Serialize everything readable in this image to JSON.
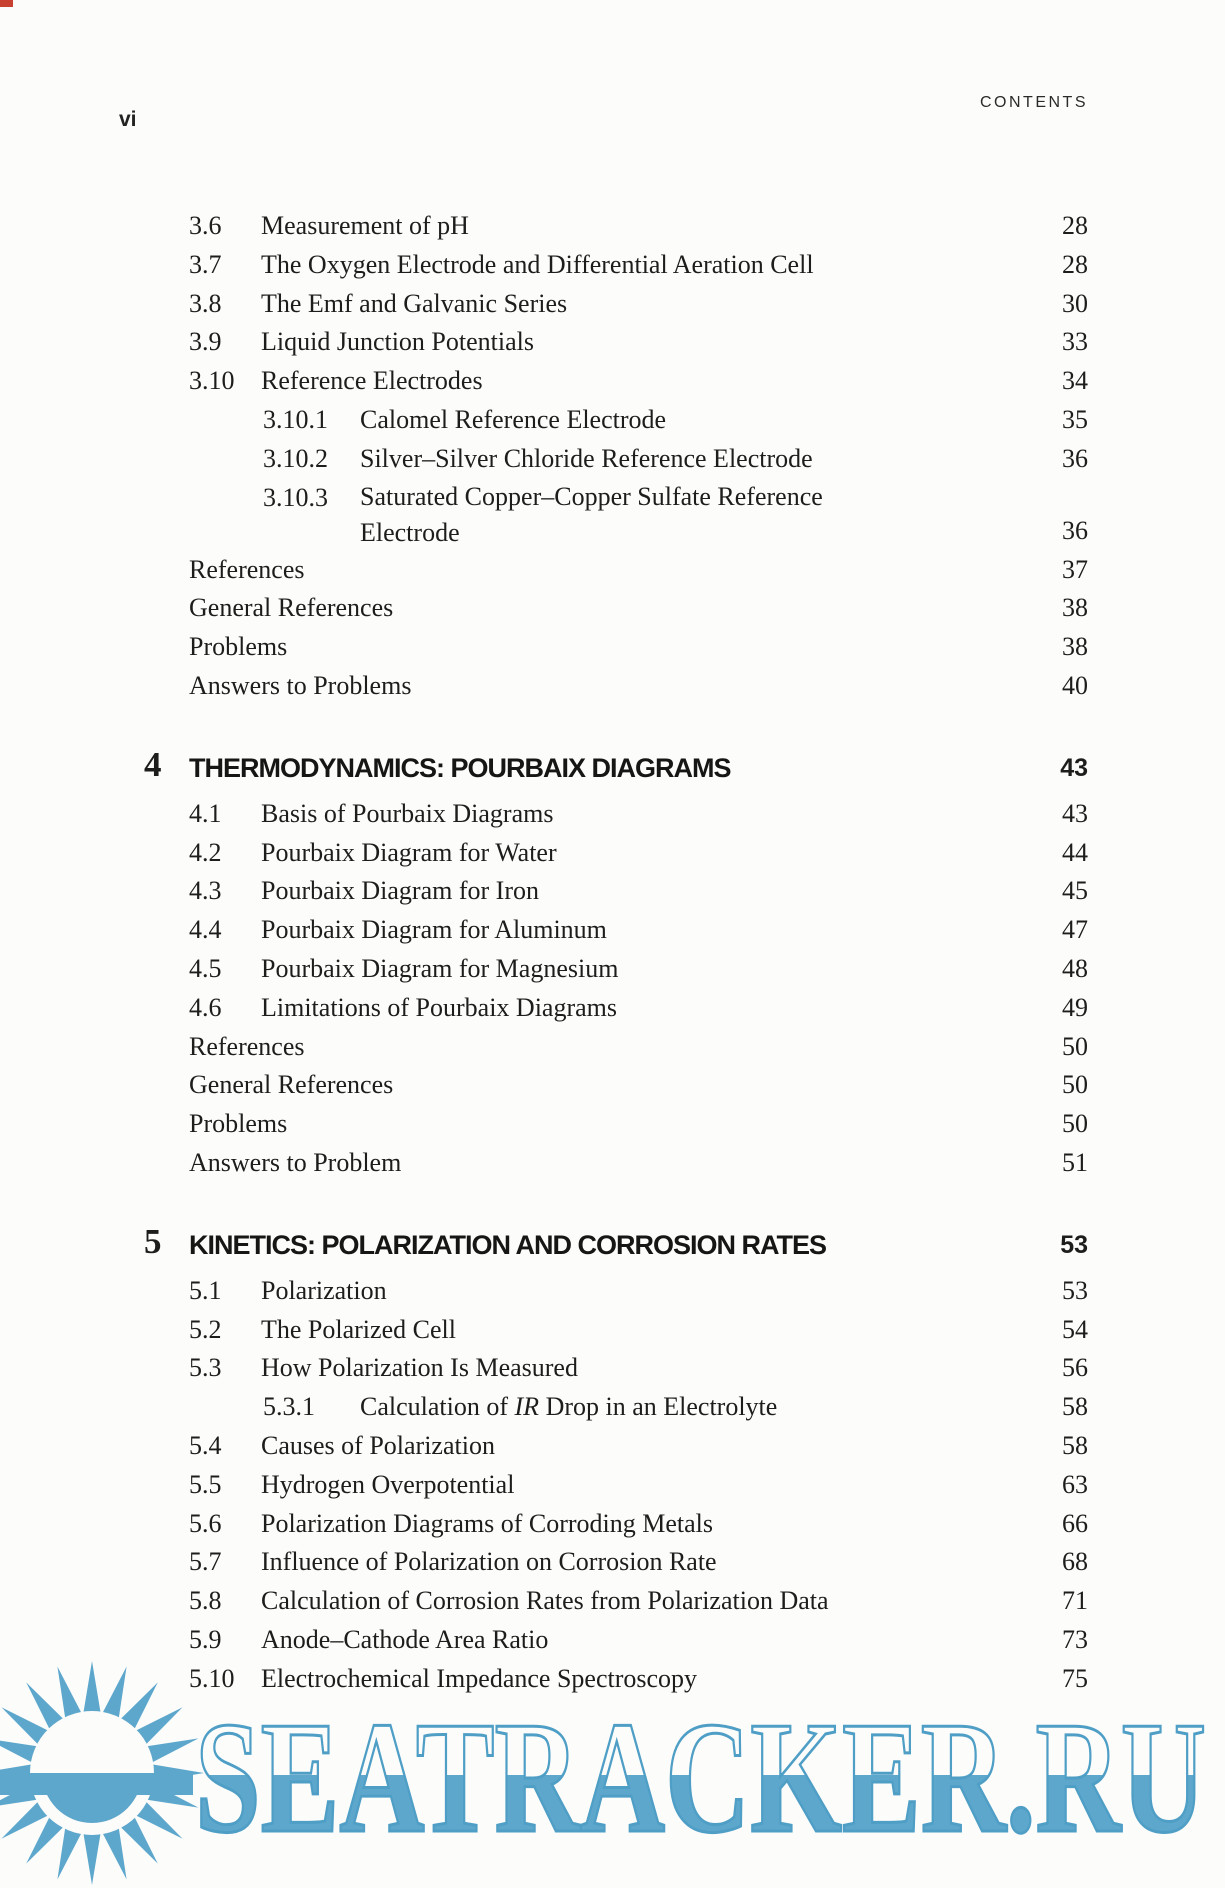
{
  "page": {
    "folio": "vi",
    "running_head": "CONTENTS"
  },
  "colors": {
    "text": "#1d1d1b",
    "watermark_fill": "#5ea7cc",
    "watermark_stroke": "#4e9ec6"
  },
  "chapters": [
    {
      "rows": [
        {
          "number": "3.6",
          "title": "Measurement of pH",
          "page": "28",
          "level": 1
        },
        {
          "number": "3.7",
          "title": "The Oxygen Electrode and Differential Aeration Cell",
          "page": "28",
          "level": 1
        },
        {
          "number": "3.8",
          "title": "The Emf and Galvanic Series",
          "page": "30",
          "level": 1
        },
        {
          "number": "3.9",
          "title": "Liquid Junction Potentials",
          "page": "33",
          "level": 1
        },
        {
          "number": "3.10",
          "title": "Reference Electrodes",
          "page": "34",
          "level": 1
        },
        {
          "number": "3.10.1",
          "title": "Calomel Reference Electrode",
          "page": "35",
          "level": 2
        },
        {
          "number": "3.10.2",
          "title": "Silver–Silver Chloride Reference Electrode",
          "page": "36",
          "level": 2
        },
        {
          "number": "3.10.3",
          "lines": [
            "Saturated Copper–Copper Sulfate Reference",
            "Electrode"
          ],
          "page": "36",
          "level": 2
        },
        {
          "label": "References",
          "page": "37"
        },
        {
          "label": "General References",
          "page": "38"
        },
        {
          "label": "Problems",
          "page": "38"
        },
        {
          "label": "Answers to Problems",
          "page": "40"
        }
      ]
    },
    {
      "number": "4",
      "title": "THERMODYNAMICS: POURBAIX DIAGRAMS",
      "page": "43",
      "rows": [
        {
          "number": "4.1",
          "title": "Basis of Pourbaix Diagrams",
          "page": "43",
          "level": 1
        },
        {
          "number": "4.2",
          "title": "Pourbaix Diagram for Water",
          "page": "44",
          "level": 1
        },
        {
          "number": "4.3",
          "title": "Pourbaix Diagram for Iron",
          "page": "45",
          "level": 1
        },
        {
          "number": "4.4",
          "title": "Pourbaix Diagram for Aluminum",
          "page": "47",
          "level": 1
        },
        {
          "number": "4.5",
          "title": "Pourbaix Diagram for Magnesium",
          "page": "48",
          "level": 1
        },
        {
          "number": "4.6",
          "title": "Limitations of Pourbaix Diagrams",
          "page": "49",
          "level": 1
        },
        {
          "label": "References",
          "page": "50"
        },
        {
          "label": "General References",
          "page": "50"
        },
        {
          "label": "Problems",
          "page": "50"
        },
        {
          "label": "Answers to Problem",
          "page": "51"
        }
      ]
    },
    {
      "number": "5",
      "title": "KINETICS: POLARIZATION AND CORROSION RATES",
      "page": "53",
      "rows": [
        {
          "number": "5.1",
          "title": "Polarization",
          "page": "53",
          "level": 1
        },
        {
          "number": "5.2",
          "title": "The Polarized Cell",
          "page": "54",
          "level": 1
        },
        {
          "number": "5.3",
          "title": "How Polarization Is Measured",
          "page": "56",
          "level": 1
        },
        {
          "number": "5.3.1",
          "parts": [
            [
              "Calculation of ",
              false
            ],
            [
              "IR",
              true
            ],
            [
              " Drop in an Electrolyte",
              false
            ]
          ],
          "page": "58",
          "level": 2
        },
        {
          "number": "5.4",
          "title": "Causes of Polarization",
          "page": "58",
          "level": 1
        },
        {
          "number": "5.5",
          "title": "Hydrogen Overpotential",
          "page": "63",
          "level": 1
        },
        {
          "number": "5.6",
          "title": "Polarization Diagrams of Corroding Metals",
          "page": "66",
          "level": 1
        },
        {
          "number": "5.7",
          "title": "Influence of Polarization on Corrosion Rate",
          "page": "68",
          "level": 1
        },
        {
          "number": "5.8",
          "title": "Calculation of Corrosion Rates from Polarization Data",
          "page": "71",
          "level": 1
        },
        {
          "number": "5.9",
          "title": "Anode–Cathode Area Ratio",
          "page": "73",
          "level": 1
        },
        {
          "number": "5.10",
          "title": "Electrochemical Impedance Spectroscopy",
          "page": "75",
          "level": 1
        }
      ]
    }
  ],
  "watermark": {
    "text": "SEATRACKER.RU"
  }
}
